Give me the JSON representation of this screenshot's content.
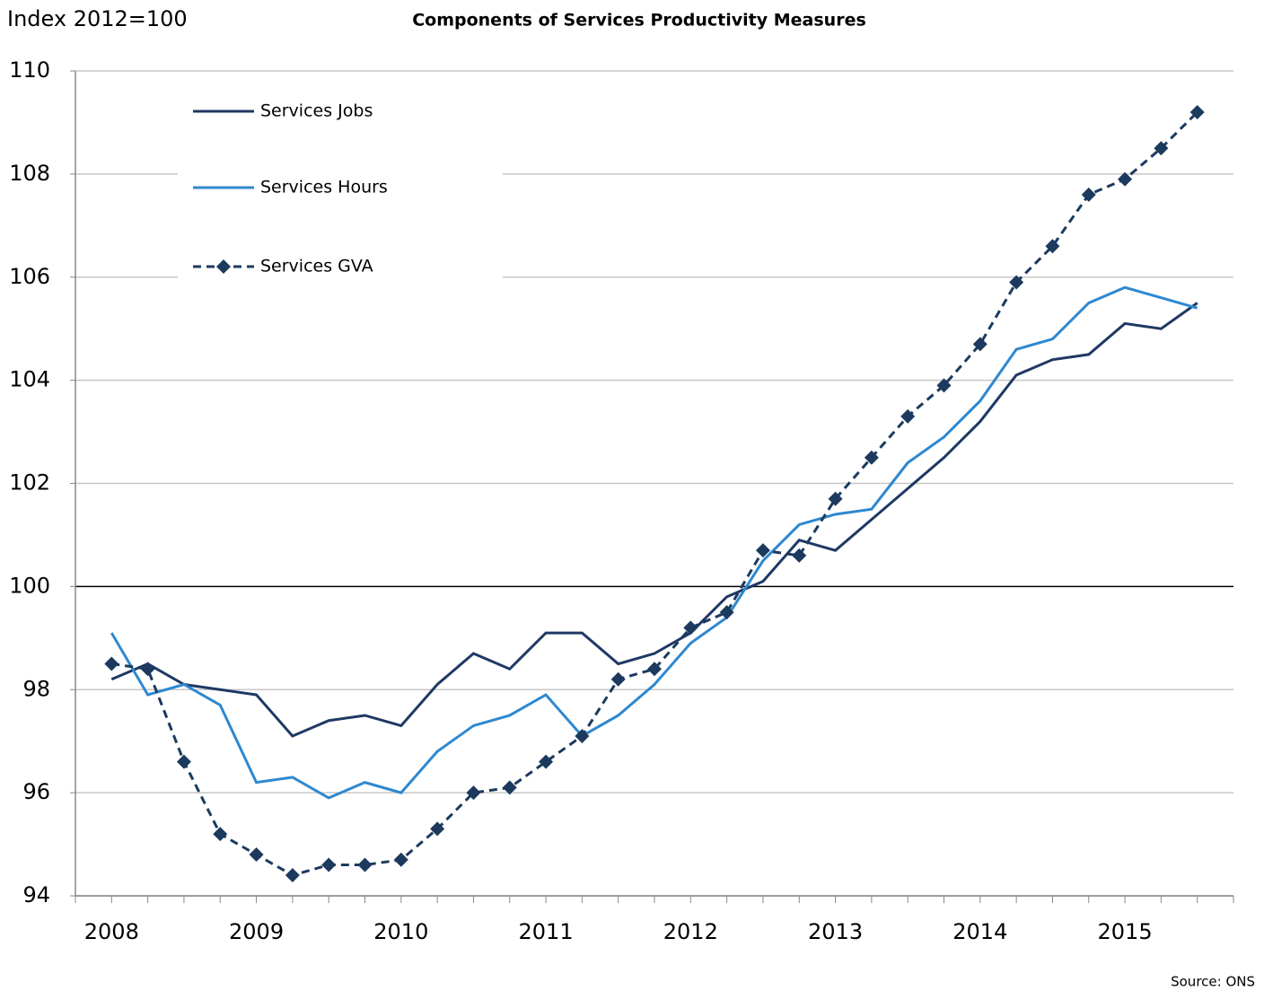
{
  "chart_data": {
    "type": "line",
    "title": "Components of Services Productivity Measures",
    "y_label": "Index 2012=100",
    "source": "Source: ONS",
    "categories": [
      "2008",
      null,
      null,
      null,
      "2009",
      null,
      null,
      null,
      "2010",
      null,
      null,
      null,
      "2011",
      null,
      null,
      null,
      "2012",
      null,
      null,
      null,
      "2013",
      null,
      null,
      null,
      "2014",
      null,
      null,
      null,
      "2015",
      null,
      null
    ],
    "series": [
      {
        "name": "Services Jobs",
        "color": "#1f3864",
        "dashed": false,
        "marker": null,
        "values": [
          98.2,
          98.5,
          98.1,
          98.0,
          97.9,
          97.1,
          97.4,
          97.5,
          97.3,
          98.1,
          98.7,
          98.4,
          99.1,
          99.1,
          98.5,
          98.7,
          99.1,
          99.8,
          100.1,
          100.9,
          100.7,
          101.3,
          101.9,
          102.5,
          103.2,
          104.1,
          104.4,
          104.5,
          105.1,
          105.0,
          105.5
        ]
      },
      {
        "name": "Services Hours",
        "color": "#2e88d0",
        "dashed": false,
        "marker": null,
        "values": [
          99.1,
          97.9,
          98.1,
          97.7,
          96.2,
          96.3,
          95.9,
          96.2,
          96.0,
          96.8,
          97.3,
          97.5,
          97.9,
          97.1,
          97.5,
          98.1,
          98.9,
          99.4,
          100.5,
          101.2,
          101.4,
          101.5,
          102.4,
          102.9,
          103.6,
          104.6,
          104.8,
          105.5,
          105.8,
          105.6,
          105.4
        ]
      },
      {
        "name": "Services GVA",
        "color": "#1c3a5e",
        "dashed": true,
        "marker": "diamond",
        "values": [
          98.5,
          98.4,
          96.6,
          95.2,
          94.8,
          94.4,
          94.6,
          94.6,
          94.7,
          95.3,
          96.0,
          96.1,
          96.6,
          97.1,
          98.2,
          98.4,
          99.2,
          99.5,
          100.7,
          100.6,
          101.7,
          102.5,
          103.3,
          103.9,
          104.7,
          105.9,
          106.6,
          107.6,
          107.9,
          108.5,
          109.2
        ]
      }
    ],
    "ylim": [
      94,
      110
    ],
    "yticks": [
      94,
      96,
      98,
      100,
      102,
      104,
      106,
      108,
      110
    ],
    "grid": true,
    "reference_line": 100,
    "legend": "upper left"
  }
}
